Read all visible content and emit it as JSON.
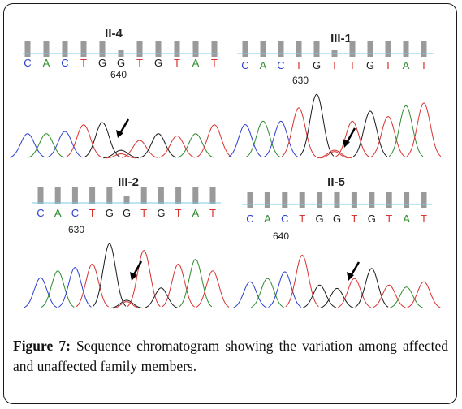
{
  "panels": [
    {
      "id": "II-4",
      "bases": [
        "C",
        "A",
        "C",
        "T",
        "G",
        "G",
        "T",
        "G",
        "T",
        "A",
        "T"
      ],
      "position_label": "640",
      "peaks": [
        0.55,
        0.55,
        0.6,
        0.75,
        0.8,
        0.18,
        0.4,
        0.55,
        0.5,
        0.55,
        0.75
      ]
    },
    {
      "id": "III-1",
      "bases": [
        "C",
        "A",
        "C",
        "T",
        "G",
        "T",
        "T",
        "G",
        "T",
        "A",
        "T"
      ],
      "position_label": "630",
      "peaks": [
        0.5,
        0.55,
        0.55,
        0.75,
        0.95,
        0.12,
        0.55,
        0.7,
        0.62,
        0.78,
        0.82
      ]
    },
    {
      "id": "III-2",
      "bases": [
        "C",
        "A",
        "C",
        "T",
        "G",
        "G",
        "T",
        "G",
        "T",
        "A",
        "T"
      ],
      "position_label": "630",
      "peaks": [
        0.45,
        0.55,
        0.6,
        0.65,
        0.95,
        0.12,
        0.85,
        0.3,
        0.65,
        0.72,
        0.55
      ]
    },
    {
      "id": "II-5",
      "bases": [
        "C",
        "A",
        "C",
        "T",
        "G",
        "G",
        "T",
        "G",
        "T",
        "A",
        "T"
      ],
      "position_label": "640",
      "peaks": [
        0.4,
        0.45,
        0.55,
        0.8,
        0.35,
        0.3,
        0.45,
        0.6,
        0.35,
        0.32,
        0.4
      ]
    }
  ],
  "base_colors": {
    "A": "#2e8b2e",
    "C": "#2b3fcf",
    "G": "#1a1a1a",
    "T": "#d8322f"
  },
  "caption": {
    "label": "Figure 7:",
    "text": " Sequence chromatogram showing the variation among affected and unaffected family members."
  }
}
